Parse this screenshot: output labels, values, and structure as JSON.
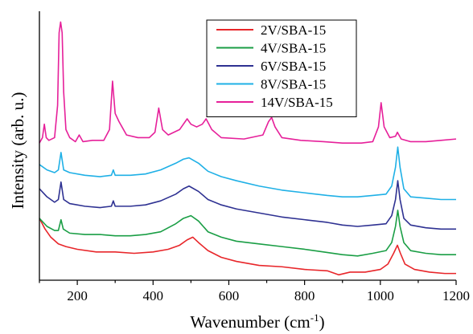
{
  "chart_data": {
    "type": "line",
    "title": "",
    "xlabel": "Wavenumber (cm",
    "xlabel_sup": "-1",
    "xlabel_close": ")",
    "ylabel": "Intensity (arb. u.)",
    "xlim": [
      100,
      1200
    ],
    "ylim": [
      0,
      100
    ],
    "x_ticks": [
      200,
      400,
      600,
      800,
      1000,
      1200
    ],
    "y_ticks_labeled": false,
    "grid": false,
    "legend_position": "top-center",
    "series": [
      {
        "name": "2V/SBA-15",
        "color": "#e8262a",
        "points": [
          [
            100,
            23
          ],
          [
            115,
            19
          ],
          [
            130,
            16
          ],
          [
            150,
            13.5
          ],
          [
            170,
            12.5
          ],
          [
            200,
            11.5
          ],
          [
            250,
            10.5
          ],
          [
            300,
            10.5
          ],
          [
            350,
            10
          ],
          [
            400,
            10.5
          ],
          [
            440,
            11.5
          ],
          [
            470,
            13
          ],
          [
            490,
            15
          ],
          [
            505,
            16
          ],
          [
            520,
            14
          ],
          [
            545,
            11
          ],
          [
            580,
            8.5
          ],
          [
            620,
            7
          ],
          [
            680,
            5.5
          ],
          [
            740,
            5
          ],
          [
            800,
            4
          ],
          [
            860,
            3.5
          ],
          [
            890,
            2
          ],
          [
            920,
            3
          ],
          [
            960,
            3
          ],
          [
            1000,
            4
          ],
          [
            1020,
            6
          ],
          [
            1035,
            10
          ],
          [
            1045,
            13
          ],
          [
            1053,
            10
          ],
          [
            1065,
            6
          ],
          [
            1090,
            4
          ],
          [
            1130,
            3
          ],
          [
            1170,
            2.5
          ],
          [
            1200,
            2.5
          ]
        ]
      },
      {
        "name": "4V/SBA-15",
        "color": "#1a9e45",
        "points": [
          [
            100,
            23
          ],
          [
            120,
            20
          ],
          [
            140,
            18.5
          ],
          [
            150,
            18.5
          ],
          [
            157,
            22.5
          ],
          [
            163,
            19
          ],
          [
            180,
            17.5
          ],
          [
            220,
            17
          ],
          [
            260,
            17
          ],
          [
            300,
            16.5
          ],
          [
            340,
            16.5
          ],
          [
            380,
            17
          ],
          [
            420,
            18
          ],
          [
            460,
            21
          ],
          [
            480,
            23
          ],
          [
            500,
            24
          ],
          [
            520,
            22
          ],
          [
            545,
            18
          ],
          [
            580,
            16
          ],
          [
            620,
            14.5
          ],
          [
            680,
            13.5
          ],
          [
            740,
            12.5
          ],
          [
            800,
            11.5
          ],
          [
            850,
            10.5
          ],
          [
            900,
            9.5
          ],
          [
            940,
            9
          ],
          [
            980,
            10
          ],
          [
            1015,
            11
          ],
          [
            1030,
            14
          ],
          [
            1040,
            20
          ],
          [
            1046,
            26
          ],
          [
            1052,
            20
          ],
          [
            1062,
            14
          ],
          [
            1080,
            11
          ],
          [
            1120,
            10
          ],
          [
            1160,
            9.5
          ],
          [
            1200,
            9.5
          ]
        ]
      },
      {
        "name": "6V/SBA-15",
        "color": "#2e3192",
        "points": [
          [
            100,
            34
          ],
          [
            120,
            31
          ],
          [
            140,
            29
          ],
          [
            150,
            30
          ],
          [
            157,
            36.5
          ],
          [
            164,
            30
          ],
          [
            180,
            28.5
          ],
          [
            220,
            27.5
          ],
          [
            260,
            27
          ],
          [
            290,
            27.5
          ],
          [
            295,
            29.5
          ],
          [
            300,
            27.5
          ],
          [
            340,
            27.5
          ],
          [
            380,
            28
          ],
          [
            420,
            29.5
          ],
          [
            460,
            32
          ],
          [
            480,
            34
          ],
          [
            495,
            35
          ],
          [
            520,
            33
          ],
          [
            545,
            30
          ],
          [
            580,
            28
          ],
          [
            620,
            26.5
          ],
          [
            680,
            25
          ],
          [
            740,
            23.5
          ],
          [
            800,
            22.5
          ],
          [
            860,
            21.5
          ],
          [
            900,
            20.5
          ],
          [
            940,
            20
          ],
          [
            980,
            20.5
          ],
          [
            1015,
            21
          ],
          [
            1030,
            24
          ],
          [
            1040,
            30
          ],
          [
            1046,
            37
          ],
          [
            1052,
            30
          ],
          [
            1062,
            23
          ],
          [
            1080,
            20.5
          ],
          [
            1120,
            19.5
          ],
          [
            1160,
            19
          ],
          [
            1200,
            19
          ]
        ]
      },
      {
        "name": "8V/SBA-15",
        "color": "#1fb0e6",
        "points": [
          [
            100,
            43
          ],
          [
            120,
            41
          ],
          [
            140,
            40
          ],
          [
            150,
            41
          ],
          [
            157,
            47.5
          ],
          [
            164,
            41
          ],
          [
            180,
            40
          ],
          [
            220,
            39
          ],
          [
            260,
            38.5
          ],
          [
            290,
            39
          ],
          [
            295,
            41
          ],
          [
            300,
            39
          ],
          [
            340,
            39
          ],
          [
            380,
            39.5
          ],
          [
            420,
            41
          ],
          [
            460,
            43.5
          ],
          [
            480,
            45
          ],
          [
            495,
            45.5
          ],
          [
            520,
            43.5
          ],
          [
            545,
            40.5
          ],
          [
            580,
            38.5
          ],
          [
            620,
            37
          ],
          [
            680,
            35
          ],
          [
            740,
            33.5
          ],
          [
            800,
            32.5
          ],
          [
            860,
            31.5
          ],
          [
            900,
            31
          ],
          [
            940,
            31
          ],
          [
            980,
            31.5
          ],
          [
            1015,
            32
          ],
          [
            1030,
            35
          ],
          [
            1040,
            42
          ],
          [
            1046,
            49.5
          ],
          [
            1052,
            42
          ],
          [
            1062,
            34
          ],
          [
            1080,
            31
          ],
          [
            1120,
            30.5
          ],
          [
            1160,
            30
          ],
          [
            1200,
            30
          ]
        ]
      },
      {
        "name": "14V/SBA-15",
        "color": "#e6209a",
        "points": [
          [
            100,
            51
          ],
          [
            108,
            53
          ],
          [
            113,
            58
          ],
          [
            118,
            53
          ],
          [
            125,
            52
          ],
          [
            140,
            53
          ],
          [
            148,
            65
          ],
          [
            152,
            92
          ],
          [
            156,
            96
          ],
          [
            160,
            92
          ],
          [
            164,
            70
          ],
          [
            170,
            56
          ],
          [
            180,
            53
          ],
          [
            195,
            51.5
          ],
          [
            205,
            54
          ],
          [
            215,
            51.5
          ],
          [
            240,
            52
          ],
          [
            270,
            52
          ],
          [
            285,
            56
          ],
          [
            293,
            74
          ],
          [
            300,
            62
          ],
          [
            310,
            59
          ],
          [
            318,
            57
          ],
          [
            330,
            54
          ],
          [
            360,
            53
          ],
          [
            390,
            53
          ],
          [
            405,
            55
          ],
          [
            415,
            64
          ],
          [
            425,
            56
          ],
          [
            440,
            54
          ],
          [
            470,
            56
          ],
          [
            490,
            60
          ],
          [
            500,
            58
          ],
          [
            515,
            57
          ],
          [
            530,
            58
          ],
          [
            540,
            60
          ],
          [
            555,
            56
          ],
          [
            580,
            53
          ],
          [
            640,
            52.5
          ],
          [
            690,
            54
          ],
          [
            705,
            59
          ],
          [
            713,
            60.5
          ],
          [
            722,
            57
          ],
          [
            740,
            53
          ],
          [
            790,
            52
          ],
          [
            850,
            51.5
          ],
          [
            900,
            51
          ],
          [
            950,
            51
          ],
          [
            980,
            51.5
          ],
          [
            995,
            57
          ],
          [
            1002,
            66
          ],
          [
            1010,
            57
          ],
          [
            1025,
            53
          ],
          [
            1040,
            53.5
          ],
          [
            1045,
            55
          ],
          [
            1055,
            52.5
          ],
          [
            1080,
            51.5
          ],
          [
            1120,
            51.5
          ],
          [
            1160,
            52
          ],
          [
            1200,
            52.5
          ]
        ]
      }
    ]
  }
}
